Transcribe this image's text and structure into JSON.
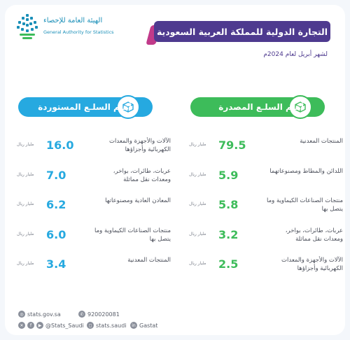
{
  "logo": {
    "arabic_name": "الهيئة العامة للإحصاء",
    "english_name": "General Authority for Statistics",
    "icon": "gastat-logo-icon"
  },
  "header": {
    "title": "التجارة الدولية للمملكة العربية السعودية",
    "subtitle": "لشهر أبريل لعام 2024م"
  },
  "exports": {
    "heading": "أهـم السلـع المصدرة",
    "icon": "box-export-icon",
    "items": [
      {
        "label": "المنتجات المعدنية",
        "value": "79.5",
        "unit": "مليار ريال"
      },
      {
        "label": "اللدائن والمطاط ومصنوعاتهما",
        "value": "5.9",
        "unit": "مليار ريال"
      },
      {
        "label": "منتجات الصناعات الكيماوية وما يتصل بها",
        "value": "5.8",
        "unit": "مليار ريال"
      },
      {
        "label": "عربات، طائرات، بواخر، ومعدات نقل مماثلة",
        "value": "3.2",
        "unit": "مليار ريال"
      },
      {
        "label": "الآلات والأجهزة والمعدات الكهربائية وأجزاؤها",
        "value": "2.5",
        "unit": "مليار ريال"
      }
    ]
  },
  "imports": {
    "heading": "أهـم السلـع المستوردة",
    "icon": "box-import-icon",
    "items": [
      {
        "label": "الآلات والأجهزة والمعدات الكهربائية وأجزاؤها",
        "value": "16.0",
        "unit": "مليار ريال"
      },
      {
        "label": "عربات، طائرات، بواخر، ومعدات نقل مماثلة",
        "value": "7.0",
        "unit": "مليار ريال"
      },
      {
        "label": "المعادن العادية ومصنوعاتها",
        "value": "6.2",
        "unit": "مليار ريال"
      },
      {
        "label": "منتجات الصناعات الكيماوية وما يتصل بها",
        "value": "6.0",
        "unit": "مليار ريال"
      },
      {
        "label": "المنتجات المعدنية",
        "value": "3.4",
        "unit": "مليار ريال"
      }
    ]
  },
  "footer": {
    "website": "stats.gov.sa",
    "phone": "920020081",
    "twitter": "@Stats_Saudi",
    "instagram": "stats.saudi",
    "brand": "Gastat"
  },
  "colors": {
    "export_green": "#3dbc5a",
    "import_blue": "#26a9e0",
    "title_purple": "#4e3a8f",
    "accent_magenta": "#c13a8a"
  }
}
